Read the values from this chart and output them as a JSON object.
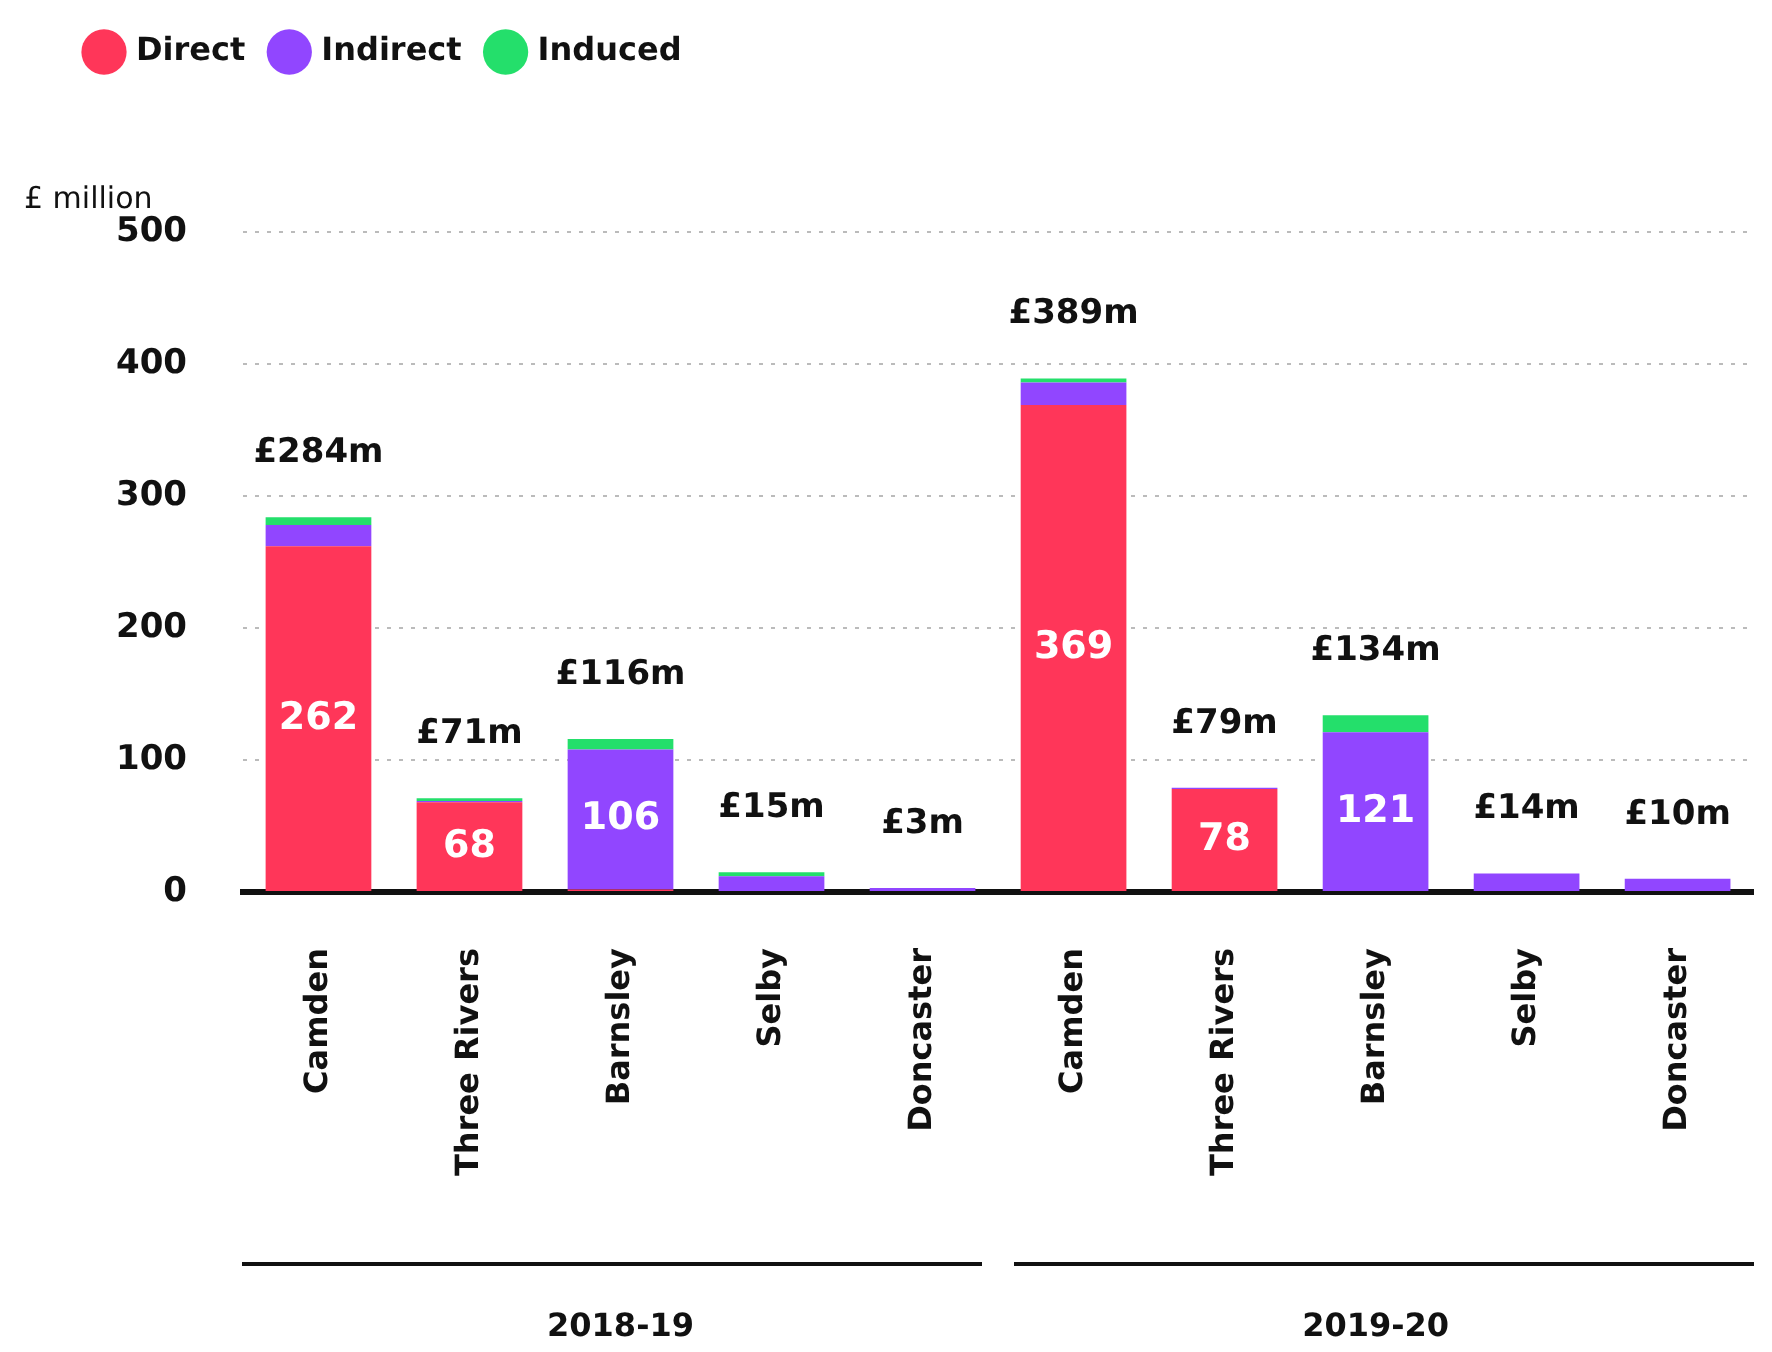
{
  "chart_data": {
    "type": "bar",
    "stacked": true,
    "ylabel": "£ million",
    "categories": [
      "Camden",
      "Three Rivers",
      "Barnsley",
      "Selby",
      "Doncaster",
      "Camden",
      "Three Rivers",
      "Barnsley",
      "Selby",
      "Doncaster"
    ],
    "series": [
      {
        "name": "Direct",
        "color": "#ff3659",
        "values": [
          262,
          68,
          2,
          0,
          0,
          369,
          78,
          0,
          0,
          0
        ],
        "value_labels": [
          "262",
          "68",
          null,
          null,
          null,
          "369",
          "78",
          null,
          null,
          null
        ]
      },
      {
        "name": "Indirect",
        "color": "#9146ff",
        "values": [
          16,
          1,
          106,
          12,
          3,
          17,
          1,
          121,
          14,
          10
        ],
        "value_labels": [
          null,
          null,
          "106",
          null,
          null,
          null,
          null,
          "121",
          null,
          null
        ]
      },
      {
        "name": "Induced",
        "color": "#24df6b",
        "values": [
          6,
          2,
          8,
          3,
          0,
          3,
          0,
          13,
          0,
          0
        ]
      }
    ],
    "totals": [
      "£284m",
      "£71m",
      "£116m",
      "£15m",
      "£3m",
      "£389m",
      "£79m",
      "£134m",
      "£14m",
      "£10m"
    ],
    "annotations": [
      "2018-19",
      "2019-20"
    ],
    "ylim": [
      0,
      500
    ],
    "yticks": [
      0,
      100,
      200,
      300,
      400,
      500
    ],
    "grid": "y",
    "legend": "top left"
  }
}
